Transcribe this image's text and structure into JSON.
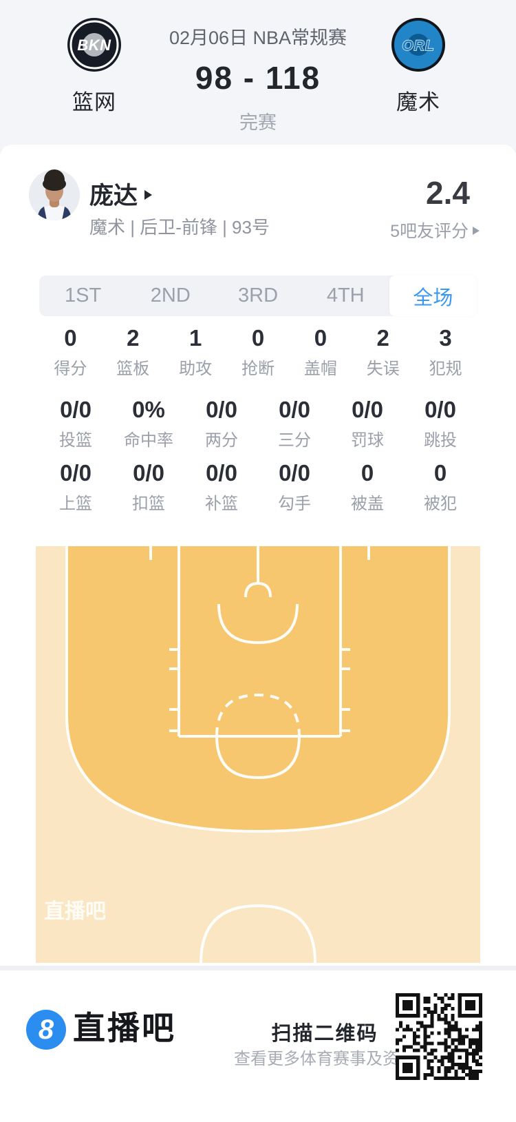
{
  "header": {
    "date_competition": "02月06日 NBA常规赛",
    "score": "98 - 118",
    "status": "完赛",
    "home_team": {
      "abbr": "BKN",
      "name": "篮网"
    },
    "away_team": {
      "abbr": "ORL",
      "name": "魔术"
    }
  },
  "player": {
    "name": "庞达",
    "meta": "魔术 | 后卫-前锋 | 93号",
    "rating": "2.4",
    "rating_source": "5吧友评分"
  },
  "tabs": [
    {
      "label": "1ST",
      "active": false
    },
    {
      "label": "2ND",
      "active": false
    },
    {
      "label": "3RD",
      "active": false
    },
    {
      "label": "4TH",
      "active": false
    },
    {
      "label": "全场",
      "active": true
    }
  ],
  "stats": {
    "rows": [
      {
        "cells": [
          {
            "value": "0",
            "label": "得分"
          },
          {
            "value": "2",
            "label": "篮板"
          },
          {
            "value": "1",
            "label": "助攻"
          },
          {
            "value": "0",
            "label": "抢断"
          },
          {
            "value": "0",
            "label": "盖帽"
          },
          {
            "value": "2",
            "label": "失误"
          },
          {
            "value": "3",
            "label": "犯规"
          }
        ]
      },
      {
        "cells": [
          {
            "value": "0/0",
            "label": "投篮"
          },
          {
            "value": "0%",
            "label": "命中率"
          },
          {
            "value": "0/0",
            "label": "两分"
          },
          {
            "value": "0/0",
            "label": "三分"
          },
          {
            "value": "0/0",
            "label": "罚球"
          },
          {
            "value": "0/0",
            "label": "跳投"
          }
        ]
      },
      {
        "cells": [
          {
            "value": "0/0",
            "label": "上篮"
          },
          {
            "value": "0/0",
            "label": "扣篮"
          },
          {
            "value": "0/0",
            "label": "补篮"
          },
          {
            "value": "0/0",
            "label": "勾手"
          },
          {
            "value": "0",
            "label": "被盖"
          },
          {
            "value": "0",
            "label": "被犯"
          }
        ]
      }
    ]
  },
  "court": {
    "watermark": "直播吧"
  },
  "footer": {
    "logo_char": "8",
    "brand": "直播吧",
    "qr_title": "扫描二维码",
    "qr_subtitle": "查看更多体育赛事及资讯"
  },
  "colors": {
    "accent_blue": "#3b98f0",
    "footer_logo_blue": "#2b8df0",
    "court_inner_orange": "#f6c76f",
    "court_outer_cream": "#fae6c2",
    "bkn_dark": "#161b26",
    "orl_blue": "#2285c7"
  }
}
